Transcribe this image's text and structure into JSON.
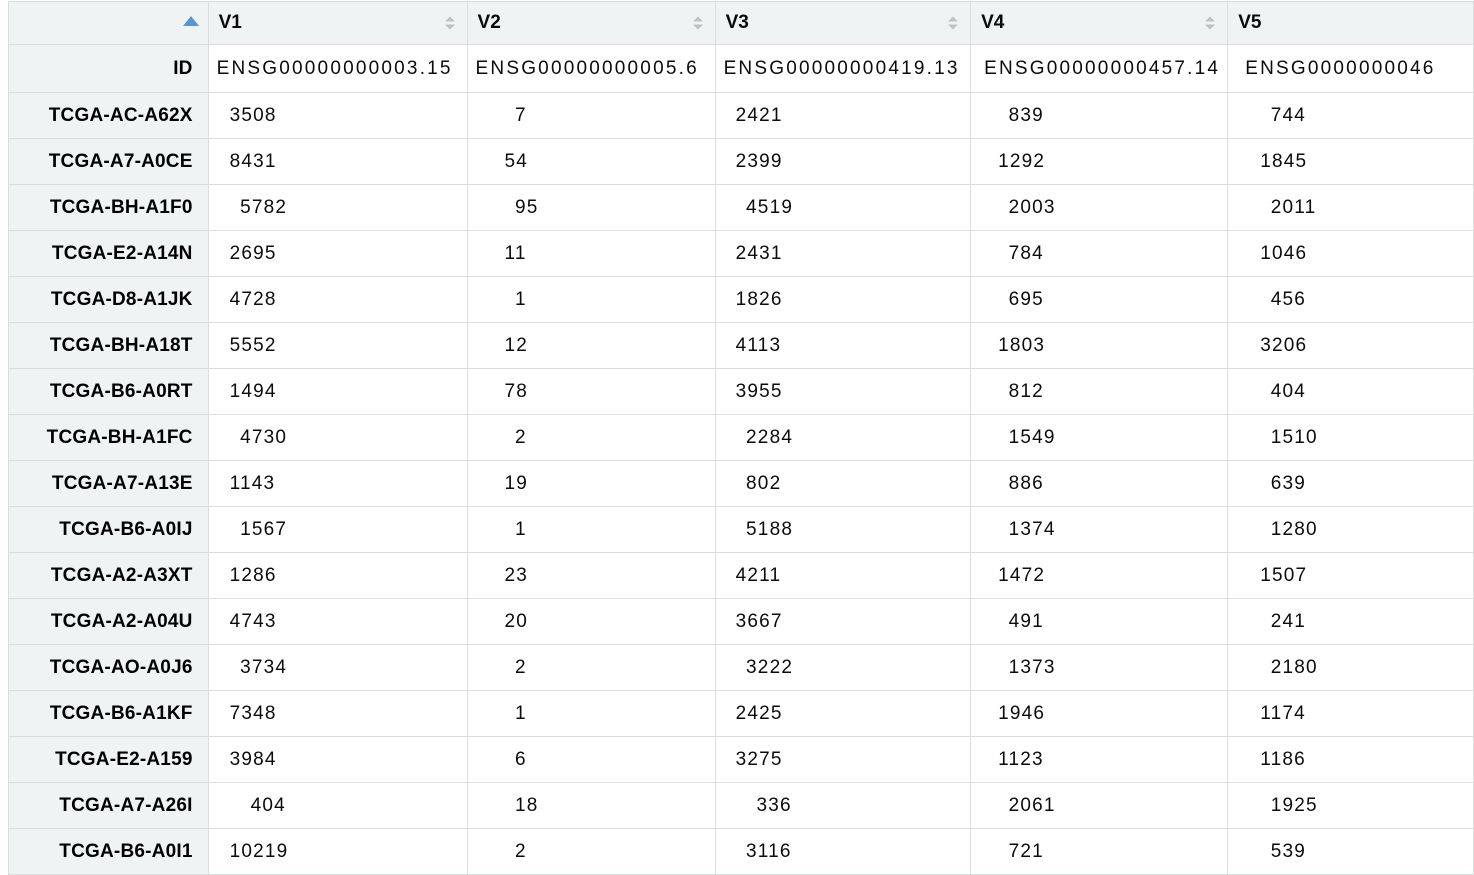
{
  "table": {
    "id_row_label": "ID",
    "columns": [
      {
        "label": "V1",
        "id_value": "ENSG00000000003.15",
        "sort_icon": "sort-toggle-icon"
      },
      {
        "label": "V2",
        "id_value": "ENSG00000000005.6",
        "sort_icon": "sort-toggle-icon"
      },
      {
        "label": "V3",
        "id_value": "ENSG00000000419.13",
        "sort_icon": "sort-toggle-icon"
      },
      {
        "label": "V4",
        "id_value": "ENSG00000000457.14",
        "sort_icon": "sort-toggle-icon"
      },
      {
        "label": "V5",
        "id_value": "ENSG0000000046",
        "sort_icon": "none-visible"
      }
    ],
    "corner_sort_icon": "sort-ascending-icon",
    "rows": [
      {
        "name": "TCGA-AC-A62X",
        "values": [
          "3508",
          " 7",
          "2421",
          " 839",
          " 744"
        ]
      },
      {
        "name": "TCGA-A7-A0CE",
        "values": [
          "8431",
          "54",
          "2399",
          "1292",
          "1845"
        ]
      },
      {
        "name": "TCGA-BH-A1F0",
        "values": [
          " 5782",
          " 95",
          " 4519",
          " 2003",
          " 2011"
        ]
      },
      {
        "name": "TCGA-E2-A14N",
        "values": [
          "2695",
          "11",
          "2431",
          " 784",
          "1046"
        ]
      },
      {
        "name": "TCGA-D8-A1JK",
        "values": [
          "4728",
          " 1",
          "1826",
          " 695",
          " 456"
        ]
      },
      {
        "name": "TCGA-BH-A18T",
        "values": [
          "5552",
          "12",
          "4113",
          "1803",
          "3206"
        ]
      },
      {
        "name": "TCGA-B6-A0RT",
        "values": [
          "1494",
          "78",
          "3955",
          " 812",
          " 404"
        ]
      },
      {
        "name": "TCGA-BH-A1FC",
        "values": [
          " 4730",
          " 2",
          " 2284",
          " 1549",
          " 1510"
        ]
      },
      {
        "name": "TCGA-A7-A13E",
        "values": [
          "1143",
          "19",
          " 802",
          " 886",
          " 639"
        ]
      },
      {
        "name": "TCGA-B6-A0IJ",
        "values": [
          " 1567",
          " 1",
          " 5188",
          " 1374",
          " 1280"
        ]
      },
      {
        "name": "TCGA-A2-A3XT",
        "values": [
          "1286",
          "23",
          "4211",
          "1472",
          "1507"
        ]
      },
      {
        "name": "TCGA-A2-A04U",
        "values": [
          "4743",
          "20",
          "3667",
          " 491",
          " 241"
        ]
      },
      {
        "name": "TCGA-AO-A0J6",
        "values": [
          " 3734",
          " 2",
          " 3222",
          " 1373",
          " 2180"
        ]
      },
      {
        "name": "TCGA-B6-A1KF",
        "values": [
          "7348",
          " 1",
          "2425",
          "1946",
          "1174"
        ]
      },
      {
        "name": "TCGA-E2-A159",
        "values": [
          "3984",
          " 6",
          "3275",
          "1123",
          "1186"
        ]
      },
      {
        "name": "TCGA-A7-A26I",
        "values": [
          "  404",
          " 18",
          "  336",
          " 2061",
          " 1925"
        ]
      },
      {
        "name": "TCGA-B6-A0I1",
        "values": [
          "10219",
          " 2",
          " 3116",
          " 721",
          " 539"
        ]
      }
    ]
  },
  "colors": {
    "header_bg": "#f0f3f4",
    "row_label_bg": "#f0f3f4",
    "grid_border": "#d9dddd",
    "sorted_arrow_blue": "#5596d5",
    "unsorted_arrow_gray": "#bcc3c3",
    "text": "#0b0b0b"
  }
}
